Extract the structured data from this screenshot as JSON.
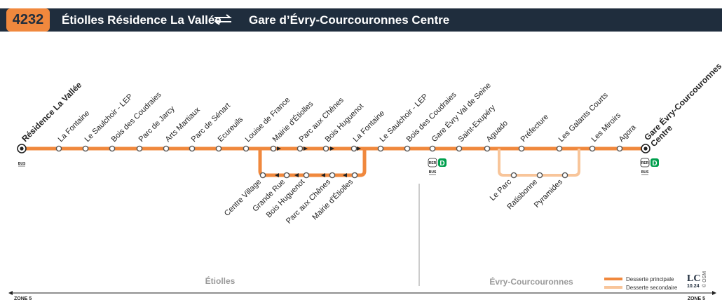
{
  "header": {
    "line_number": "4232",
    "origin": "Étiolles Résidence La Vallée",
    "destination": "Gare d’Évry-Courcouronnes Centre",
    "colors": {
      "bar": "#1f2d3d",
      "badge": "#f0883d"
    }
  },
  "colors": {
    "main_line": "#f0883d",
    "secondary_line": "#f8c59a",
    "rer_d": "#009f4d"
  },
  "terminus_start": {
    "label": "Résidence La Vallée",
    "connections": [
      "BUS"
    ]
  },
  "terminus_end": {
    "label_line1": "Gare Évry-Courcouronnes",
    "label_line2": "Centre",
    "connections": [
      "RER",
      "D",
      "BUS"
    ]
  },
  "main_stops": [
    "La Fontaine",
    "Le Saulchoir - LEP",
    "Bois des Coudraies",
    "Parc de Jarcy",
    "Arts Martiaux",
    "Parc de Sénart",
    "Ecureuils",
    "Louise de France",
    "Mairie d'Étiolles",
    "Parc aux Chênes",
    "Bois Huguenot",
    "La Fontaine",
    "Le Saulchoir - LEP",
    "Bois des Coudraies",
    "Gare Évry Val de Seine",
    "Saint-Exupéry",
    "Aguado",
    "Préfecture",
    "Les Galants Courts",
    "Les Miroirs",
    "Agora"
  ],
  "loop_stops": [
    "Centre Village",
    "Grande Rue",
    "Bois Huguenot",
    "Parc aux Chênes",
    "Mairie d'Étiolles"
  ],
  "branch_stops": [
    "Le Parc",
    "Ratisbonne",
    "Pyramides"
  ],
  "gare_val_de_seine_connections": [
    "RER",
    "D",
    "BUS"
  ],
  "zones": {
    "left": "Étiolles",
    "right": "Évry-Courcouronnes",
    "left_tag": "ZONE 5",
    "right_tag": "ZONE 5"
  },
  "legend": {
    "main": "Desserte principale",
    "secondary": "Desserte secondaire"
  },
  "credits": {
    "logo": "LC",
    "date": "10.24",
    "osm": "© OSM"
  }
}
